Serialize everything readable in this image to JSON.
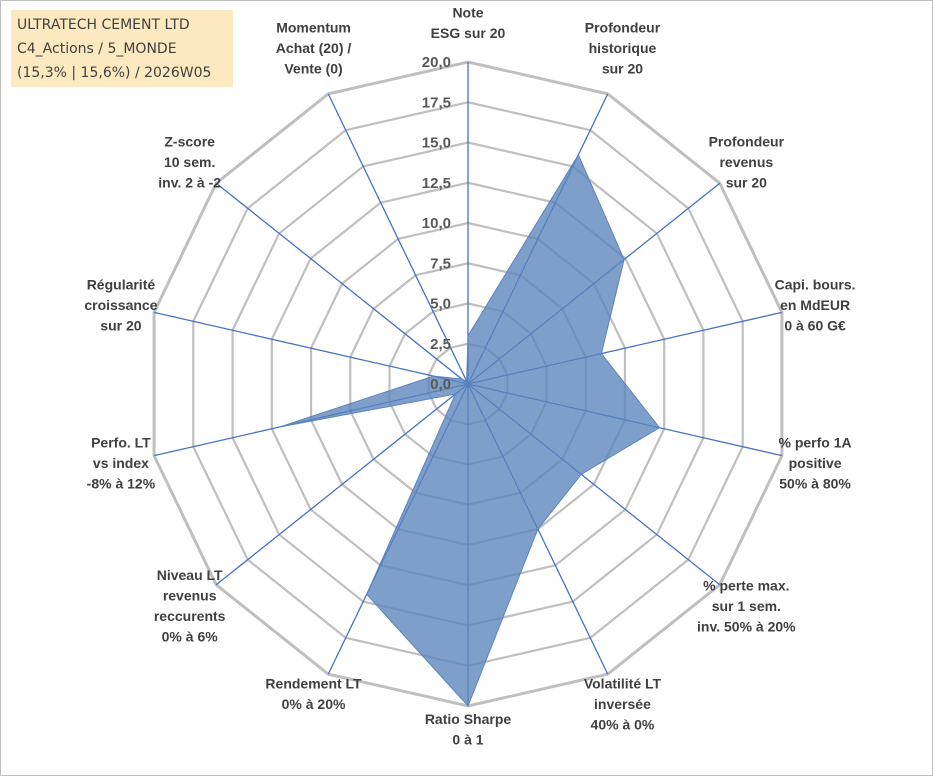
{
  "info_box": {
    "line1": "ULTRATECH CEMENT LTD",
    "line2": "C4_Actions / 5_MONDE",
    "line3": "(15,3% | 15,6%) / 2026W05"
  },
  "colors": {
    "grid": "#bfbfbf",
    "spoke": "#4472c4",
    "fill": "#5b84bd",
    "fill_opacity": 0.78,
    "tick_text": "#595959",
    "label_text": "#404040",
    "info_bg": "#fde9bf"
  },
  "chart_data": {
    "type": "radar",
    "rmin": 0,
    "rmax": 20,
    "tick_step": 2.5,
    "tick_labels": [
      "0,0",
      "2,5",
      "5,0",
      "7,5",
      "10,0",
      "12,5",
      "15,0",
      "17,5",
      "20,0"
    ],
    "grid": true,
    "categories": [
      [
        "Note",
        "ESG sur 20"
      ],
      [
        "Profondeur",
        "historique",
        "sur 20"
      ],
      [
        "Profondeur",
        "revenus",
        "sur 20"
      ],
      [
        "Capi. bours.",
        "en MdEUR",
        "0 à 60 G€"
      ],
      [
        "% perfo 1A",
        "positive",
        "50% à 80%"
      ],
      [
        "% perte max.",
        "sur 1 sem.",
        "inv. 50% à 20%"
      ],
      [
        "Volatilité LT",
        "inversée",
        "40% à 0%"
      ],
      [
        "Ratio Sharpe",
        "0 à 1"
      ],
      [
        "Rendement LT",
        "0% à 20%"
      ],
      [
        "Niveau LT",
        "revenus",
        "reccurents",
        "0% à 6%"
      ],
      [
        "Perfo. LT",
        "vs index",
        "-8% à 12%"
      ],
      [
        "Régularité",
        "croissance",
        "sur 20"
      ],
      [
        "Z-score",
        "10 sem.",
        "inv. 2 à -2"
      ],
      [
        "Momentum",
        "Achat (20) /",
        "Vente (0)"
      ]
    ],
    "series": [
      {
        "values": [
          3.0,
          15.8,
          12.4,
          8.5,
          12.2,
          9.0,
          10.0,
          20.0,
          14.5,
          1.0,
          12.0,
          2.2,
          0.5,
          0.2
        ]
      }
    ]
  }
}
